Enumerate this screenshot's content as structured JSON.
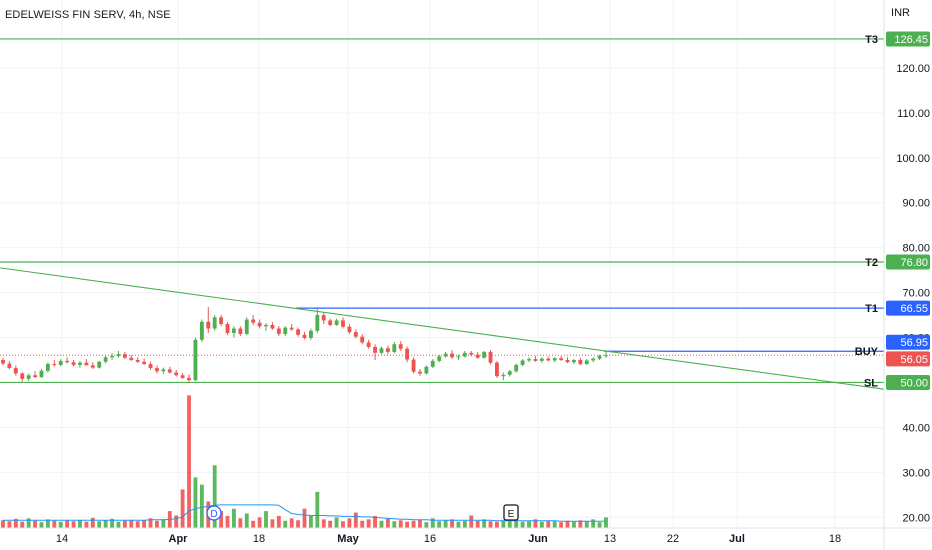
{
  "header": {
    "symbol_title": "EDELWEISS FIN SERV, 4h, NSE",
    "currency": "INR"
  },
  "colors": {
    "up": "#26a69a",
    "up_candle": "#4caf50",
    "down": "#ef5350",
    "level_green": "#4caf50",
    "level_blue": "#2962ff",
    "trendline": "#4caf50",
    "volume_ma": "#2196f3",
    "grid": "#f0f3fa",
    "axis_text": "#131722"
  },
  "chart_data": {
    "type": "candlestick",
    "ylim": [
      18.5,
      132
    ],
    "y_ticks": [
      "120.00",
      "110.00",
      "100.00",
      "90.00",
      "80.00",
      "70.00",
      "60.00",
      "50.00",
      "40.00",
      "30.00",
      "20.00"
    ],
    "x_ticks": [
      "14",
      "Apr",
      "18",
      "May",
      "16",
      "Jun",
      "13",
      "22",
      "Jul",
      "18"
    ],
    "levels": [
      {
        "label": "T3",
        "value": 126.45,
        "text": "126.45",
        "color": "green"
      },
      {
        "label": "T2",
        "value": 76.8,
        "text": "76.80",
        "color": "green"
      },
      {
        "label": "T1",
        "value": 66.55,
        "text": "66.55",
        "color": "blue"
      },
      {
        "label": "BUY",
        "value": 56.95,
        "text": "56.95",
        "color": "blue"
      },
      {
        "label": "SL",
        "value": 50.0,
        "text": "50.00",
        "color": "green"
      }
    ],
    "last_price": {
      "value": 56.05,
      "text": "56.05"
    },
    "trendline": {
      "from": [
        0,
        75.5
      ],
      "to": [
        1,
        48.5
      ]
    },
    "markers": [
      {
        "text": "D",
        "value": 21.0,
        "style": "circle"
      },
      {
        "text": "E",
        "value": 22.5,
        "style": "square"
      }
    ],
    "candles": [
      [
        55.0,
        55.5,
        53.8,
        54.2
      ],
      [
        54.2,
        54.8,
        53.0,
        53.2
      ],
      [
        53.2,
        53.8,
        51.5,
        52.0
      ],
      [
        52.0,
        52.3,
        50.2,
        50.8
      ],
      [
        50.8,
        52.0,
        50.3,
        51.6
      ],
      [
        51.6,
        52.5,
        51.0,
        51.2
      ],
      [
        51.2,
        53.0,
        51.0,
        52.6
      ],
      [
        52.6,
        54.5,
        52.2,
        54.1
      ],
      [
        54.1,
        55.0,
        53.5,
        53.9
      ],
      [
        53.9,
        55.2,
        53.6,
        54.8
      ],
      [
        54.8,
        55.6,
        54.2,
        54.5
      ],
      [
        54.5,
        55.0,
        53.6,
        53.9
      ],
      [
        53.9,
        54.8,
        53.3,
        54.4
      ],
      [
        54.4,
        55.2,
        53.8,
        53.8
      ],
      [
        53.8,
        54.5,
        53.0,
        53.3
      ],
      [
        53.3,
        54.8,
        53.1,
        54.6
      ],
      [
        54.6,
        56.0,
        54.2,
        55.6
      ],
      [
        55.6,
        56.5,
        55.0,
        55.9
      ],
      [
        55.9,
        57.0,
        55.5,
        56.3
      ],
      [
        56.3,
        56.8,
        55.2,
        55.5
      ],
      [
        55.5,
        56.1,
        54.8,
        55.0
      ],
      [
        55.0,
        55.6,
        54.3,
        54.6
      ],
      [
        54.6,
        55.3,
        53.9,
        54.1
      ],
      [
        54.1,
        54.6,
        52.8,
        53.2
      ],
      [
        53.2,
        53.8,
        52.0,
        52.5
      ],
      [
        52.5,
        53.3,
        51.9,
        52.9
      ],
      [
        52.9,
        53.5,
        52.0,
        52.2
      ],
      [
        52.2,
        52.8,
        51.3,
        51.6
      ],
      [
        51.6,
        52.1,
        50.8,
        51.0
      ],
      [
        51.0,
        51.8,
        50.2,
        50.5
      ],
      [
        50.5,
        60.0,
        50.3,
        59.5
      ],
      [
        59.5,
        64.0,
        59.0,
        63.5
      ],
      [
        63.5,
        66.8,
        61.0,
        62.0
      ],
      [
        62.0,
        65.0,
        61.5,
        64.5
      ],
      [
        64.5,
        65.0,
        62.5,
        63.0
      ],
      [
        63.0,
        63.5,
        60.5,
        61.0
      ],
      [
        61.0,
        62.5,
        60.0,
        62.0
      ],
      [
        62.0,
        62.5,
        60.3,
        60.8
      ],
      [
        60.8,
        64.5,
        60.5,
        64.0
      ],
      [
        64.0,
        65.0,
        62.8,
        63.3
      ],
      [
        63.3,
        64.0,
        62.0,
        62.5
      ],
      [
        62.5,
        63.2,
        61.5,
        62.8
      ],
      [
        62.8,
        63.4,
        61.7,
        62.0
      ],
      [
        62.0,
        62.6,
        60.3,
        60.8
      ],
      [
        60.8,
        62.5,
        60.3,
        62.2
      ],
      [
        62.2,
        63.0,
        61.5,
        61.8
      ],
      [
        61.8,
        62.2,
        60.2,
        60.6
      ],
      [
        60.6,
        61.2,
        59.6,
        59.9
      ],
      [
        59.9,
        62.0,
        59.5,
        61.5
      ],
      [
        61.5,
        66.8,
        61.0,
        65.0
      ],
      [
        65.0,
        65.5,
        63.0,
        63.8
      ],
      [
        63.8,
        64.2,
        62.5,
        62.8
      ],
      [
        62.8,
        64.2,
        62.6,
        63.8
      ],
      [
        63.8,
        64.5,
        62.0,
        62.4
      ],
      [
        62.4,
        63.0,
        60.8,
        61.2
      ],
      [
        61.2,
        61.8,
        59.8,
        60.2
      ],
      [
        60.2,
        60.8,
        58.5,
        58.9
      ],
      [
        58.9,
        59.5,
        57.5,
        57.9
      ],
      [
        57.9,
        58.5,
        55.0,
        56.6
      ],
      [
        56.6,
        58.0,
        56.3,
        57.6
      ],
      [
        57.6,
        58.2,
        56.3,
        56.8
      ],
      [
        56.8,
        59.0,
        56.5,
        58.5
      ],
      [
        58.5,
        59.2,
        57.0,
        57.5
      ],
      [
        57.5,
        58.0,
        54.5,
        55.1
      ],
      [
        55.1,
        55.6,
        52.0,
        52.4
      ],
      [
        52.4,
        53.0,
        51.5,
        52.0
      ],
      [
        52.0,
        53.8,
        51.8,
        53.5
      ],
      [
        53.5,
        55.2,
        53.2,
        54.8
      ],
      [
        54.8,
        56.2,
        54.5,
        55.8
      ],
      [
        55.8,
        56.8,
        55.5,
        56.4
      ],
      [
        56.4,
        57.2,
        55.2,
        55.6
      ],
      [
        55.6,
        56.2,
        55.0,
        55.8
      ],
      [
        55.8,
        57.0,
        55.5,
        56.6
      ],
      [
        56.6,
        57.0,
        55.8,
        56.2
      ],
      [
        56.2,
        56.8,
        55.3,
        55.5
      ],
      [
        55.5,
        57.0,
        55.3,
        56.8
      ],
      [
        56.8,
        57.2,
        54.0,
        54.4
      ],
      [
        54.4,
        54.8,
        51.0,
        51.4
      ],
      [
        51.4,
        52.2,
        50.5,
        51.7
      ],
      [
        51.7,
        52.8,
        51.3,
        52.5
      ],
      [
        52.5,
        54.2,
        52.2,
        53.9
      ],
      [
        53.9,
        55.2,
        53.6,
        54.9
      ],
      [
        54.9,
        55.6,
        54.5,
        55.2
      ],
      [
        55.2,
        55.9,
        54.6,
        54.8
      ],
      [
        54.8,
        55.6,
        54.4,
        55.3
      ],
      [
        55.3,
        55.8,
        54.7,
        54.9
      ],
      [
        54.9,
        55.6,
        54.5,
        55.4
      ],
      [
        55.4,
        55.9,
        54.8,
        55.0
      ],
      [
        55.0,
        55.6,
        54.3,
        54.5
      ],
      [
        54.5,
        55.2,
        54.1,
        55.0
      ],
      [
        55.0,
        55.5,
        53.8,
        54.1
      ],
      [
        54.1,
        55.2,
        53.9,
        54.9
      ],
      [
        54.9,
        55.6,
        54.5,
        55.3
      ],
      [
        55.3,
        56.2,
        55.0,
        55.9
      ],
      [
        55.9,
        57.0,
        55.5,
        56.05
      ]
    ],
    "volumes": [
      1.6,
      1.4,
      1.9,
      1.3,
      2.0,
      1.5,
      1.2,
      1.8,
      1.5,
      1.3,
      1.6,
      1.4,
      1.7,
      1.3,
      2.1,
      1.4,
      1.6,
      1.9,
      1.3,
      1.5,
      1.7,
      1.4,
      1.6,
      2.0,
      1.5,
      1.8,
      3.5,
      2.6,
      8.0,
      27.5,
      10.5,
      9.0,
      5.5,
      13.0,
      3.5,
      2.5,
      4.0,
      2.0,
      3.0,
      1.5,
      2.2,
      3.5,
      1.8,
      2.5,
      1.5,
      2.0,
      1.6,
      4.0,
      2.5,
      7.5,
      1.8,
      1.5,
      2.2,
      1.4,
      2.0,
      3.2,
      1.5,
      1.8,
      2.5,
      1.5,
      1.9,
      1.4,
      1.6,
      1.3,
      1.5,
      1.7,
      1.2,
      2.0,
      1.4,
      1.6,
      1.8,
      1.3,
      1.5,
      2.6,
      1.5,
      1.8,
      1.4,
      1.3,
      1.6,
      1.4,
      1.5,
      1.3,
      1.4,
      1.8,
      1.3,
      1.5,
      1.4,
      1.2,
      1.5,
      1.3,
      1.6,
      1.4,
      1.8,
      1.2,
      2.2
    ],
    "volume_ma": [
      1.6,
      1.6,
      1.6,
      1.6,
      1.6,
      1.6,
      1.6,
      1.6,
      1.6,
      1.6,
      1.6,
      1.6,
      1.6,
      1.6,
      1.6,
      1.6,
      1.6,
      1.6,
      1.6,
      1.6,
      1.6,
      1.6,
      1.6,
      1.7,
      1.7,
      1.7,
      1.8,
      1.9,
      2.3,
      3.5,
      4.0,
      4.3,
      4.5,
      4.7,
      4.8,
      4.8,
      4.8,
      4.8,
      4.8,
      4.8,
      4.8,
      4.8,
      4.8,
      4.7,
      3.8,
      3.0,
      2.8,
      2.7,
      2.6,
      2.6,
      2.6,
      2.5,
      2.5,
      2.4,
      2.4,
      2.4,
      2.3,
      2.3,
      2.2,
      2.1,
      2.0,
      1.9,
      1.8,
      1.8,
      1.7,
      1.7,
      1.7,
      1.6,
      1.6,
      1.6,
      1.6,
      1.6,
      1.6,
      1.6,
      1.6,
      1.6,
      1.6,
      1.5,
      1.5,
      1.5,
      1.5,
      1.5,
      1.5,
      1.5,
      1.5,
      1.5,
      1.5,
      1.4,
      1.4,
      1.4,
      1.4,
      1.4,
      1.4,
      1.4,
      1.4
    ]
  }
}
